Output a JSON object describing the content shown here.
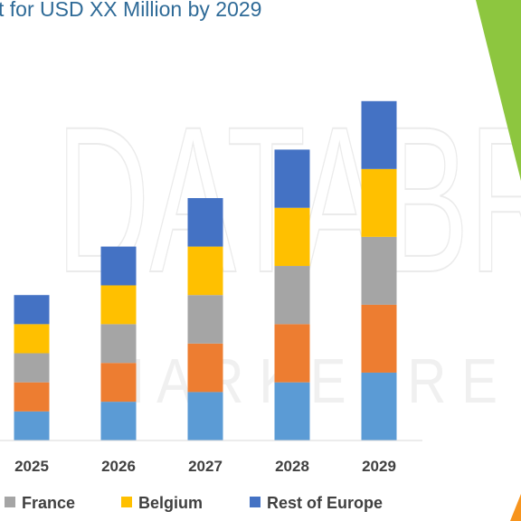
{
  "title": "t for USD XX Million by 2029",
  "watermark": {
    "line1": "DATABR",
    "line2": "M A R K E T R E"
  },
  "colors": {
    "accent_green": "#8dc63f",
    "accent_orange": "#f7941d",
    "title": "#2e6a97"
  },
  "chart_data": {
    "type": "bar",
    "stacked": true,
    "categories": [
      "2025",
      "2026",
      "2027",
      "2028",
      "2029"
    ],
    "series": [
      {
        "name": "",
        "color": "#5b9bd5",
        "values": [
          1.2,
          1.6,
          2.0,
          2.4,
          2.8
        ]
      },
      {
        "name": "",
        "color": "#ed7d31",
        "values": [
          1.2,
          1.6,
          2.0,
          2.4,
          2.8
        ]
      },
      {
        "name": "France",
        "color": "#a5a5a5",
        "values": [
          1.2,
          1.6,
          2.0,
          2.4,
          2.8
        ]
      },
      {
        "name": "Belgium",
        "color": "#ffc000",
        "values": [
          1.2,
          1.6,
          2.0,
          2.4,
          2.8
        ]
      },
      {
        "name": "Rest of Europe",
        "color": "#4472c4",
        "values": [
          1.2,
          1.6,
          2.0,
          2.4,
          2.8
        ]
      }
    ],
    "legend_position": "bottom",
    "grid": false
  }
}
